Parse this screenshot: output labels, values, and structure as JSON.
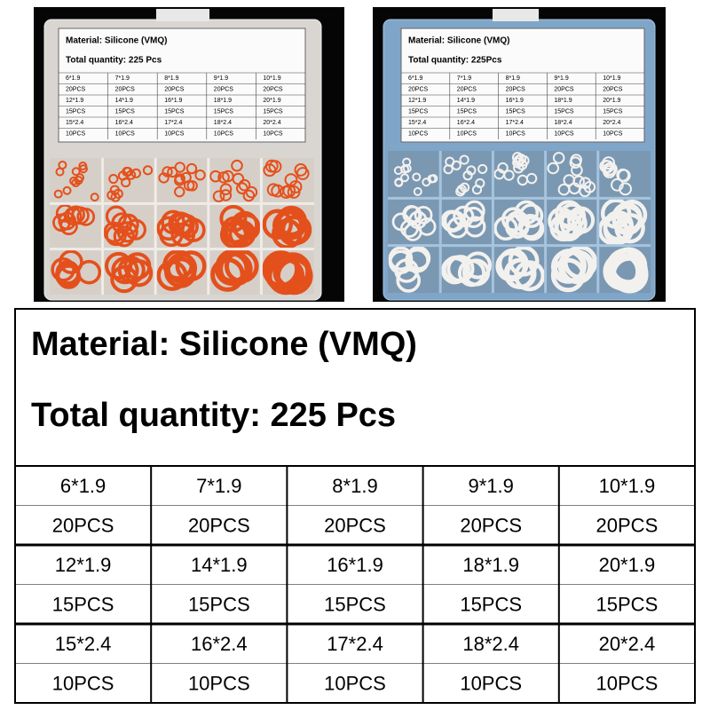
{
  "photo_labels": [
    {
      "material": "Material: Silicone (VMQ)",
      "quantity": "Total quantity: 225 Pcs"
    },
    {
      "material": "Material: Silicone (VMQ)",
      "quantity": "Total quantity: 225Pcs"
    }
  ],
  "header": {
    "material": "Material: Silicone (VMQ)",
    "quantity": "Total quantity: 225 Pcs"
  },
  "table": {
    "rows": [
      [
        "6*1.9",
        "7*1.9",
        "8*1.9",
        "9*1.9",
        "10*1.9"
      ],
      [
        "20PCS",
        "20PCS",
        "20PCS",
        "20PCS",
        "20PCS"
      ],
      [
        "12*1.9",
        "14*1.9",
        "16*1.9",
        "18*1.9",
        "20*1.9"
      ],
      [
        "15PCS",
        "15PCS",
        "15PCS",
        "15PCS",
        "15PCS"
      ],
      [
        "15*2.4",
        "16*2.4",
        "17*2.4",
        "18*2.4",
        "20*2.4"
      ],
      [
        "10PCS",
        "10PCS",
        "10PCS",
        "10PCS",
        "10PCS"
      ]
    ]
  }
}
